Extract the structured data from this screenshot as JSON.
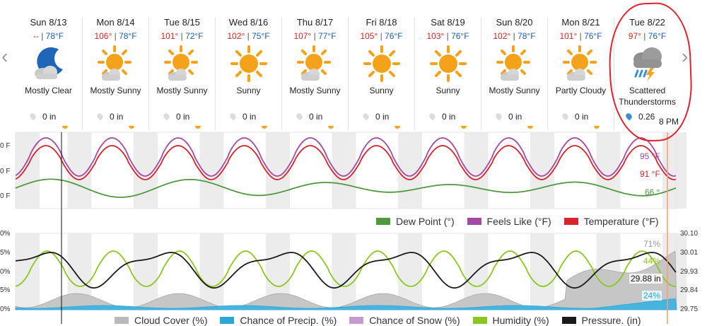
{
  "forecast": {
    "days": [
      {
        "date": "Sun 8/13",
        "hi": "--",
        "lo": "78°F",
        "icon": "moon-cloud-icon",
        "condition": "Mostly Clear",
        "precip": "0 in",
        "rain": false
      },
      {
        "date": "Mon 8/14",
        "hi": "106°",
        "lo": "78°F",
        "icon": "sun-cloud-icon",
        "condition": "Mostly Sunny",
        "precip": "0 in",
        "rain": false
      },
      {
        "date": "Tue 8/15",
        "hi": "101°",
        "lo": "72°F",
        "icon": "sun-cloud-icon",
        "condition": "Mostly Sunny",
        "precip": "0 in",
        "rain": false
      },
      {
        "date": "Wed 8/16",
        "hi": "102°",
        "lo": "75°F",
        "icon": "sun-icon",
        "condition": "Sunny",
        "precip": "0 in",
        "rain": false
      },
      {
        "date": "Thu 8/17",
        "hi": "107°",
        "lo": "77°F",
        "icon": "sun-cloud-icon",
        "condition": "Mostly Sunny",
        "precip": "0 in",
        "rain": false
      },
      {
        "date": "Fri 8/18",
        "hi": "105°",
        "lo": "76°F",
        "icon": "sun-icon",
        "condition": "Sunny",
        "precip": "0 in",
        "rain": false
      },
      {
        "date": "Sat 8/19",
        "hi": "103°",
        "lo": "76°F",
        "icon": "sun-icon",
        "condition": "Sunny",
        "precip": "0 in",
        "rain": false
      },
      {
        "date": "Sun 8/20",
        "hi": "102°",
        "lo": "78°F",
        "icon": "sun-cloud-icon",
        "condition": "Mostly Sunny",
        "precip": "0 in",
        "rain": false
      },
      {
        "date": "Mon 8/21",
        "hi": "101°",
        "lo": "76°F",
        "icon": "sun-cloud-icon",
        "condition": "Partly Cloudy",
        "precip": "0 in",
        "rain": false
      },
      {
        "date": "Tue 8/22",
        "hi": "97°",
        "lo": "76°F",
        "icon": "thunderstorm-icon",
        "condition": "Scattered Thunderstorms",
        "precip": "0.26",
        "rain": true
      }
    ],
    "time_marker": "8 PM",
    "nav": {
      "prev": "‹",
      "next": "›"
    }
  },
  "colors": {
    "temperature": "#d8232a",
    "feels_like": "#a349a4",
    "dew_point": "#4e9a3e",
    "humidity": "#8cc71f",
    "pressure": "#1a1a1a",
    "cloud": "#b9b9b9",
    "precip": "#2ba7d8",
    "snow": "#c59ad3",
    "marker": "#f0a070"
  },
  "temp_chart": {
    "axis_labels": [
      "0 F",
      "0 F",
      "0 F"
    ],
    "end_labels": {
      "feels_like": "95 °F",
      "temperature": "91 °F",
      "dew_point": "66 °"
    },
    "legend": [
      {
        "label": "Dew Point (°)",
        "color": "#4e9a3e"
      },
      {
        "label": "Feels Like (°F)",
        "color": "#a349a4"
      },
      {
        "label": "Temperature (°F)",
        "color": "#d8232a"
      }
    ]
  },
  "cond_chart": {
    "left_axis": [
      "0%",
      "5%",
      "0%",
      "5%",
      "0%"
    ],
    "right_axis": [
      "30.10",
      "30.01",
      "29.93",
      "29.84",
      "29.75"
    ],
    "end_labels": {
      "cloud": "71%",
      "humidity": "44%",
      "pressure": "29.88 in",
      "precip": "24%"
    },
    "legend": [
      {
        "label": "Cloud Cover (%)",
        "color": "#b9b9b9"
      },
      {
        "label": "Chance of Precip. (%)",
        "color": "#2ba7d8"
      },
      {
        "label": "Chance of Snow (%)",
        "color": "#c59ad3"
      },
      {
        "label": "Humidity (%)",
        "color": "#8cc71f"
      },
      {
        "label": "Pressure. (in)",
        "color": "#1a1a1a"
      }
    ]
  }
}
